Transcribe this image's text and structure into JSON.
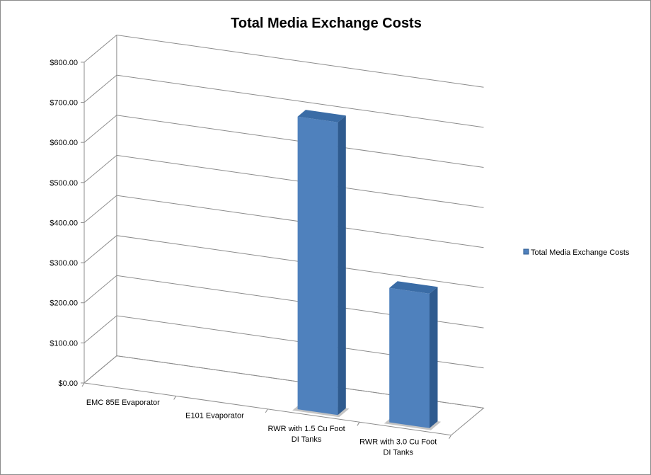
{
  "chart_data": {
    "type": "bar",
    "title": "Total Media Exchange Costs",
    "xlabel": "",
    "ylabel": "",
    "categories": [
      [
        "EMC 85E Evaporator"
      ],
      [
        "E101 Evaporator"
      ],
      [
        "RWR with 1.5 Cu Foot",
        "DI Tanks"
      ],
      [
        "RWR with 3.0 Cu Foot",
        "DI Tanks"
      ]
    ],
    "series": [
      {
        "name": "Total Media Exchange Costs",
        "values": [
          0,
          0,
          730,
          335
        ]
      }
    ],
    "ylim": [
      0,
      800
    ],
    "yticks": [
      "$0.00",
      "$100.00",
      "$200.00",
      "$300.00",
      "$400.00",
      "$500.00",
      "$600.00",
      "$700.00",
      "$800.00"
    ],
    "grid": true,
    "legend_position": "right",
    "three_d": true,
    "colors": {
      "bar_front": "#4f81bd",
      "bar_side": "#2f5b8f",
      "bar_top": "#3a6ca6",
      "grid": "#8c8c8c",
      "shadow": "#555555"
    }
  }
}
